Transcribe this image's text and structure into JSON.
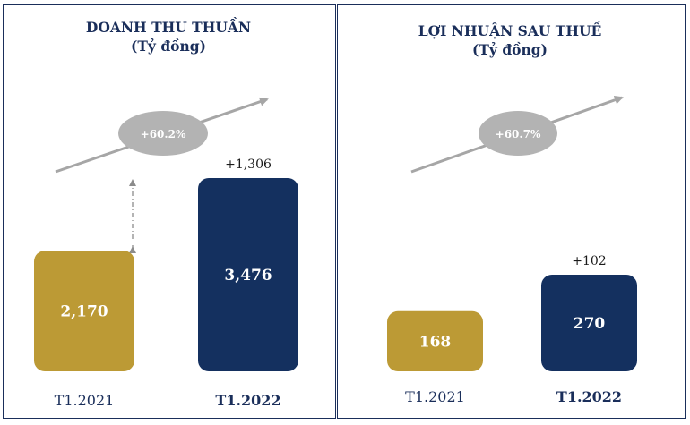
{
  "colors": {
    "gold": "#bc9a35",
    "navy": "#14305f",
    "title": "#1a2e5a",
    "bubble": "#b3b3b3",
    "arrow": "#a6a6a6",
    "border": "#1a2e5a"
  },
  "chart_data": [
    {
      "type": "bar",
      "title": "DOANH THU THUẦN",
      "subtitle": "(Tỷ đồng)",
      "categories": [
        "T1.2021",
        "T1.2022"
      ],
      "values": [
        2170,
        3476
      ],
      "value_labels": [
        "2,170",
        "3,476"
      ],
      "bar_colors": [
        "#bc9a35",
        "#14305f"
      ],
      "growth_label": "+60.2%",
      "difference_label": "+1,306",
      "xlabel": "",
      "ylabel": "",
      "grid": false
    },
    {
      "type": "bar",
      "title": "LỢI NHUẬN SAU THUẾ",
      "subtitle": "(Tỷ đồng)",
      "categories": [
        "T1.2021",
        "T1.2022"
      ],
      "values": [
        168,
        270
      ],
      "value_labels": [
        "168",
        "270"
      ],
      "bar_colors": [
        "#bc9a35",
        "#14305f"
      ],
      "growth_label": "+60.7%",
      "difference_label": "+102",
      "xlabel": "",
      "ylabel": "",
      "grid": false
    }
  ]
}
